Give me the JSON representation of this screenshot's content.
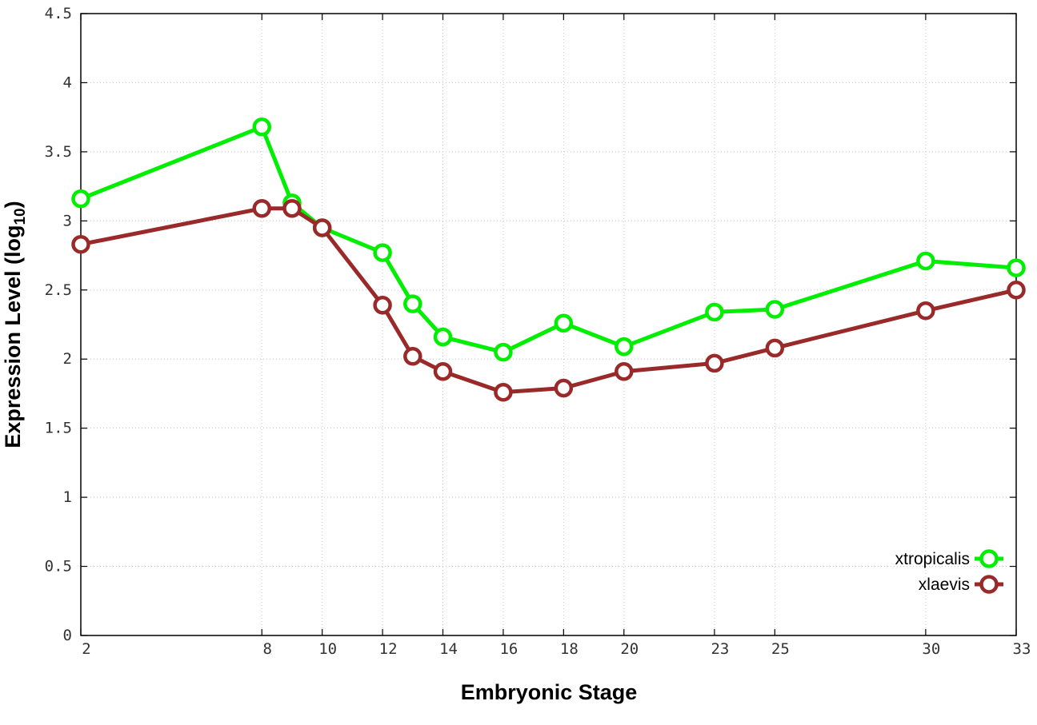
{
  "chart_data": {
    "type": "line",
    "xlabel": "Embryonic Stage",
    "ylabel": "Expression Level (log",
    "ylabel_subscript": "10",
    "ylabel_close": ")",
    "x_ticks": [
      "2",
      "8",
      "10",
      "12",
      "14",
      "16",
      "18",
      "20",
      "23",
      "25",
      "30",
      "33"
    ],
    "x_positions": [
      1,
      7,
      9,
      11,
      13,
      15,
      17,
      19,
      22,
      24,
      29,
      32
    ],
    "xlim": [
      1,
      32
    ],
    "ylim": [
      0,
      4.5
    ],
    "y_ticks": [
      "0",
      "0.5",
      "1",
      "1.5",
      "2",
      "2.5",
      "3",
      "3.5",
      "4",
      "4.5"
    ],
    "y_tick_values": [
      0,
      0.5,
      1,
      1.5,
      2,
      2.5,
      3,
      3.5,
      4,
      4.5
    ],
    "grid": true,
    "legend_position": "bottom-right",
    "x": [
      1,
      7,
      8,
      9,
      11,
      12,
      13,
      15,
      17,
      19,
      22,
      24,
      29,
      32
    ],
    "series": [
      {
        "name": "xtropicalis",
        "color": "#00ee00",
        "values": [
          3.16,
          3.68,
          3.13,
          2.95,
          2.77,
          2.4,
          2.16,
          2.05,
          2.26,
          2.09,
          2.34,
          2.36,
          2.71,
          2.66
        ]
      },
      {
        "name": "xlaevis",
        "color": "#9a2a2a",
        "values": [
          2.83,
          3.09,
          3.09,
          2.95,
          2.39,
          2.02,
          1.91,
          1.76,
          1.79,
          1.91,
          1.97,
          2.08,
          2.35,
          2.5
        ]
      }
    ]
  }
}
